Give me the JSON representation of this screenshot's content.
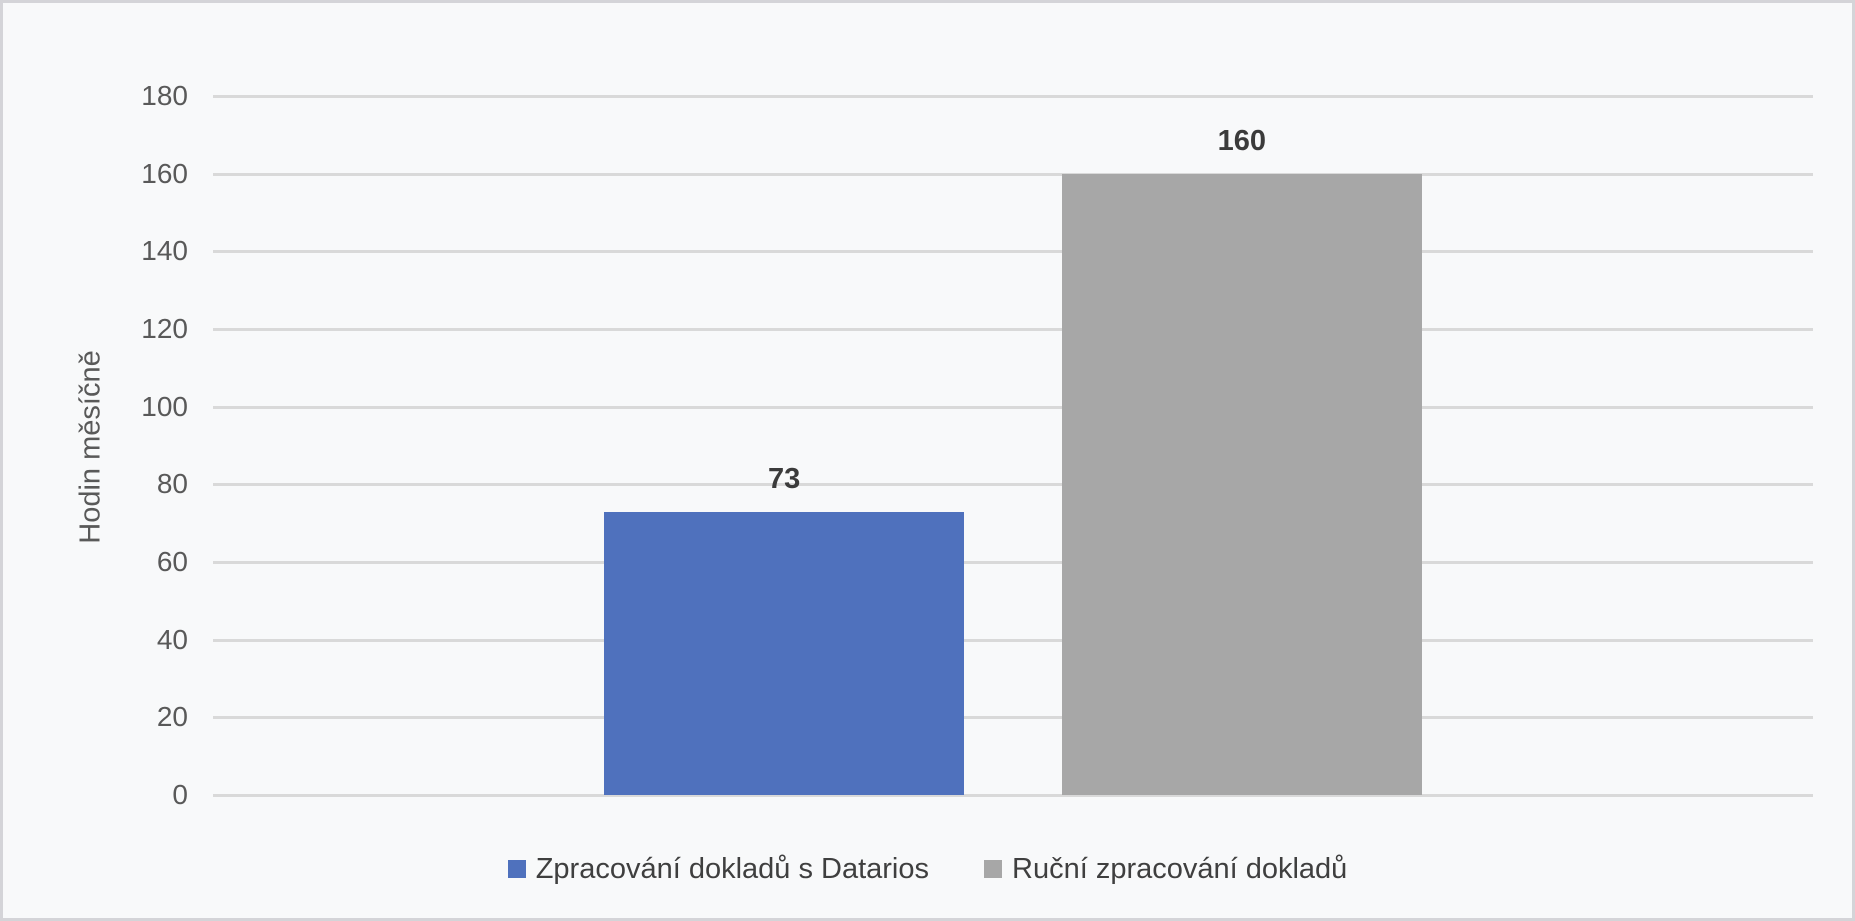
{
  "colors": {
    "background": "#F8F9FA",
    "border": "#D4D4D8",
    "gridline": "#D9D9D9",
    "tick_text": "#595959",
    "axis_title_text": "#595959",
    "data_label_text": "#3B3B3B",
    "legend_text": "#3F3F3F"
  },
  "chart_data": {
    "type": "bar",
    "title": "",
    "xlabel": "",
    "ylabel": "Hodin měsíčně",
    "ylim": [
      0,
      180
    ],
    "yticks": [
      0,
      20,
      40,
      60,
      80,
      100,
      120,
      140,
      160,
      180
    ],
    "grid": true,
    "legend_position": "bottom",
    "series": [
      {
        "name": "Zpracování dokladů s Datarios",
        "value": 73,
        "data_label": "73",
        "color": "#4F71BD"
      },
      {
        "name": "Ruční zpracování dokladů",
        "value": 160,
        "data_label": "160",
        "color": "#A7A7A7"
      }
    ]
  }
}
